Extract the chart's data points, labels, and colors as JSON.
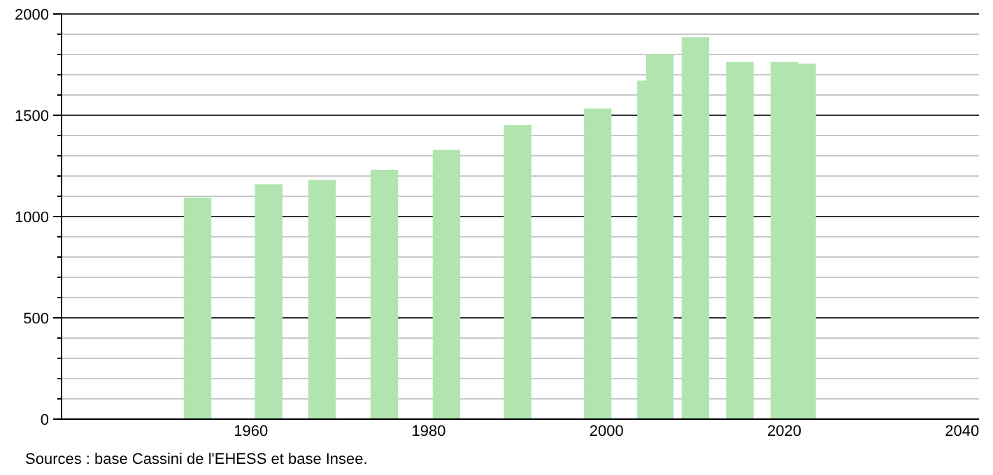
{
  "chart_data": {
    "type": "bar",
    "x": [
      1954,
      1962,
      1968,
      1975,
      1982,
      1990,
      1999,
      2005,
      2006,
      2010,
      2015,
      2020,
      2022
    ],
    "values": [
      1094,
      1159,
      1180,
      1231,
      1329,
      1452,
      1533,
      1671,
      1802,
      1885,
      1763,
      1763,
      1755
    ],
    "color": "#b0e5b0",
    "xlim": [
      1938.7,
      2041.9
    ],
    "xticks": [
      1960,
      1980,
      2000,
      2020,
      2040
    ],
    "ylim": [
      0,
      2000
    ],
    "yticks": [
      0,
      {
        "value": 100,
        "label": null
      },
      {
        "value": 200,
        "label": null
      },
      {
        "value": 300,
        "label": null
      },
      {
        "value": 400,
        "label": null
      },
      500,
      {
        "value": 600,
        "label": null
      },
      {
        "value": 700,
        "label": null
      },
      {
        "value": 800,
        "label": null
      },
      {
        "value": 900,
        "label": null
      },
      1000,
      {
        "value": 1100,
        "label": null
      },
      {
        "value": 1200,
        "label": null
      },
      {
        "value": 1300,
        "label": null
      },
      {
        "value": 1400,
        "label": null
      },
      1500,
      {
        "value": 1600,
        "label": null
      },
      {
        "value": 1700,
        "label": null
      },
      {
        "value": 1800,
        "label": null
      },
      {
        "value": 1900,
        "label": null
      },
      2000
    ],
    "grid": "y",
    "annotations": [
      "Sources : base Cassini de l'EHESS et base Insee."
    ]
  }
}
